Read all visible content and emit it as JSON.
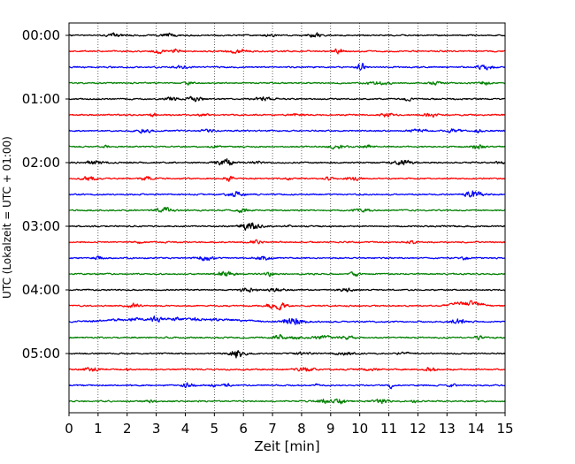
{
  "chart_data": {
    "type": "line",
    "subtype": "seismogram-helicorder",
    "title": "",
    "xlabel": "Zeit  [min]",
    "ylabel": "UTC (Lokalzeit = UTC + 01:00)",
    "xlim": [
      0,
      15
    ],
    "x_ticks": [
      "0",
      "1",
      "2",
      "3",
      "4",
      "5",
      "6",
      "7",
      "8",
      "9",
      "10",
      "11",
      "12",
      "13",
      "14",
      "15"
    ],
    "y_tick_labels": [
      "00:00",
      "01:00",
      "02:00",
      "03:00",
      "04:00",
      "05:00"
    ],
    "trace_interval_minutes": 15,
    "trace_count": 24,
    "trace_colors_cycle": [
      "#000000",
      "#ff0000",
      "#0000ff",
      "#008000"
    ],
    "vertical_grid": "dotted",
    "traces": [
      {
        "start": "00:00",
        "color": "#000000"
      },
      {
        "start": "00:15",
        "color": "#ff0000"
      },
      {
        "start": "00:30",
        "color": "#0000ff"
      },
      {
        "start": "00:45",
        "color": "#008000"
      },
      {
        "start": "01:00",
        "color": "#000000"
      },
      {
        "start": "01:15",
        "color": "#ff0000"
      },
      {
        "start": "01:30",
        "color": "#0000ff"
      },
      {
        "start": "01:45",
        "color": "#008000"
      },
      {
        "start": "02:00",
        "color": "#000000"
      },
      {
        "start": "02:15",
        "color": "#ff0000"
      },
      {
        "start": "02:30",
        "color": "#0000ff"
      },
      {
        "start": "02:45",
        "color": "#008000"
      },
      {
        "start": "03:00",
        "color": "#000000"
      },
      {
        "start": "03:15",
        "color": "#ff0000"
      },
      {
        "start": "03:30",
        "color": "#0000ff"
      },
      {
        "start": "03:45",
        "color": "#008000"
      },
      {
        "start": "04:00",
        "color": "#000000"
      },
      {
        "start": "04:15",
        "color": "#ff0000",
        "elevated_segment_min": [
          12.8,
          14.6
        ]
      },
      {
        "start": "04:30",
        "color": "#0000ff",
        "elevated_segment_min": [
          0.2,
          7.0
        ]
      },
      {
        "start": "04:45",
        "color": "#008000"
      },
      {
        "start": "05:00",
        "color": "#000000"
      },
      {
        "start": "05:15",
        "color": "#ff0000"
      },
      {
        "start": "05:30",
        "color": "#0000ff"
      },
      {
        "start": "05:45",
        "color": "#008000"
      }
    ]
  }
}
